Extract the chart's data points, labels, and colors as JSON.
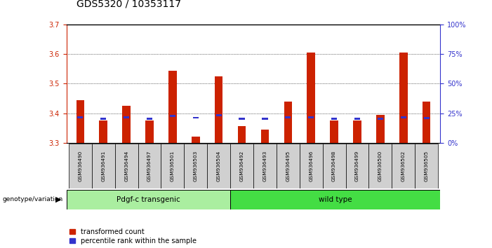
{
  "title": "GDS5320 / 10353117",
  "samples": [
    "GSM936490",
    "GSM936491",
    "GSM936494",
    "GSM936497",
    "GSM936501",
    "GSM936503",
    "GSM936504",
    "GSM936492",
    "GSM936493",
    "GSM936495",
    "GSM936496",
    "GSM936498",
    "GSM936499",
    "GSM936500",
    "GSM936502",
    "GSM936505"
  ],
  "red_values": [
    3.445,
    3.375,
    3.425,
    3.375,
    3.545,
    3.32,
    3.525,
    3.355,
    3.345,
    3.44,
    3.605,
    3.375,
    3.375,
    3.395,
    3.605,
    3.44
  ],
  "blue_values": [
    3.383,
    3.378,
    3.383,
    3.378,
    3.388,
    3.382,
    3.39,
    3.378,
    3.378,
    3.383,
    3.383,
    3.378,
    3.378,
    3.378,
    3.383,
    3.38
  ],
  "group1_label": "Pdgf-c transgenic",
  "group2_label": "wild type",
  "group1_count": 7,
  "group2_count": 9,
  "genotype_label": "genotype/variation",
  "legend1": "transformed count",
  "legend2": "percentile rank within the sample",
  "ymin": 3.3,
  "ymax": 3.7,
  "yticks": [
    3.3,
    3.4,
    3.5,
    3.6,
    3.7
  ],
  "y2min": 0,
  "y2max": 100,
  "y2ticks": [
    0,
    25,
    50,
    75,
    100
  ],
  "bar_color": "#cc2200",
  "blue_color": "#3333cc",
  "group1_bg": "#aaeea0",
  "group2_bg": "#44dd44",
  "tick_bg": "#d0d0d0",
  "title_fontsize": 10,
  "tick_fontsize": 7,
  "bar_width": 0.35
}
